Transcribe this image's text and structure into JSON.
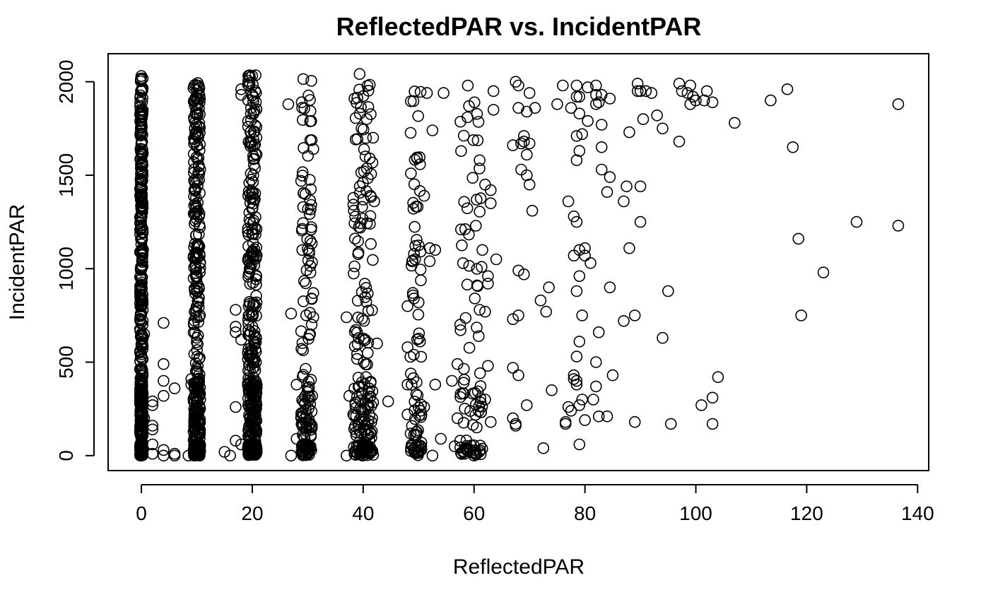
{
  "chart_data": {
    "type": "scatter",
    "title": "ReflectedPAR vs. IncidentPAR",
    "xlabel": "ReflectedPAR",
    "ylabel": "IncidentPAR",
    "xlim": [
      -6,
      142
    ],
    "ylim": [
      -80,
      2150
    ],
    "xticks": [
      0,
      20,
      40,
      60,
      80,
      100,
      120,
      140
    ],
    "yticks": [
      0,
      500,
      1000,
      1500,
      2000
    ],
    "grid": false,
    "legend": "none",
    "marker": "open-circle",
    "color": "#000000",
    "columns": [
      {
        "x": 0,
        "spread": 0.25,
        "ymin": 0,
        "ymax": 2040,
        "n": 520
      },
      {
        "x": 10,
        "spread": 0.6,
        "ymin": 0,
        "ymax": 2010,
        "n": 360
      },
      {
        "x": 20,
        "spread": 0.8,
        "ymin": 0,
        "ymax": 2040,
        "n": 380
      },
      {
        "x": 29.8,
        "spread": 1.0,
        "ymin": 0,
        "ymax": 2030,
        "n": 150
      },
      {
        "x": 40,
        "spread": 1.8,
        "ymin": 0,
        "ymax": 2070,
        "n": 200
      },
      {
        "x": 49.5,
        "spread": 1.0,
        "ymin": 0,
        "ymax": 2020,
        "n": 90
      },
      {
        "x": 59.5,
        "spread": 2.0,
        "ymin": 0,
        "ymax": 2010,
        "n": 90
      }
    ],
    "points": [
      [
        0.5,
        200
      ],
      [
        0.5,
        650
      ],
      [
        0.3,
        1100
      ],
      [
        2,
        270
      ],
      [
        2,
        290
      ],
      [
        2,
        140
      ],
      [
        2,
        160
      ],
      [
        2,
        60
      ],
      [
        2,
        10
      ],
      [
        4,
        710
      ],
      [
        4,
        490
      ],
      [
        4,
        400
      ],
      [
        4,
        320
      ],
      [
        4,
        30
      ],
      [
        4,
        0
      ],
      [
        6,
        360
      ],
      [
        6,
        10
      ],
      [
        6,
        0
      ],
      [
        8.5,
        0
      ],
      [
        9,
        380
      ],
      [
        9,
        410
      ],
      [
        15,
        20
      ],
      [
        16,
        0
      ],
      [
        17,
        780
      ],
      [
        17,
        660
      ],
      [
        17,
        690
      ],
      [
        17,
        260
      ],
      [
        17,
        80
      ],
      [
        18,
        620
      ],
      [
        18,
        60
      ],
      [
        18,
        1960
      ],
      [
        18,
        1930
      ],
      [
        26.5,
        1880
      ],
      [
        27,
        760
      ],
      [
        27,
        0
      ],
      [
        28,
        380
      ],
      [
        28,
        90
      ],
      [
        31,
        1640
      ],
      [
        31,
        870
      ],
      [
        31,
        740
      ],
      [
        37,
        740
      ],
      [
        37,
        0
      ],
      [
        37.5,
        320
      ],
      [
        42,
        1360
      ],
      [
        42.5,
        600
      ],
      [
        44.5,
        290
      ],
      [
        48,
        800
      ],
      [
        48,
        380
      ],
      [
        48,
        220
      ],
      [
        48,
        580
      ],
      [
        50,
        820
      ],
      [
        51,
        1390
      ],
      [
        51,
        260
      ],
      [
        51.5,
        1940
      ],
      [
        52,
        1110
      ],
      [
        52,
        1040
      ],
      [
        52.5,
        1740
      ],
      [
        52.5,
        0
      ],
      [
        53,
        1100
      ],
      [
        53,
        380
      ],
      [
        54,
        90
      ],
      [
        54.5,
        1940
      ],
      [
        56,
        400
      ],
      [
        56.5,
        50
      ],
      [
        57,
        200
      ],
      [
        57,
        490
      ],
      [
        57.5,
        700
      ],
      [
        57.5,
        80
      ],
      [
        61,
        1580
      ],
      [
        61,
        780
      ],
      [
        61.5,
        1100
      ],
      [
        62,
        770
      ],
      [
        62,
        1450
      ],
      [
        62,
        300
      ],
      [
        62.5,
        920
      ],
      [
        62.5,
        960
      ],
      [
        62.5,
        480
      ],
      [
        63,
        1420
      ],
      [
        63,
        1350
      ],
      [
        63,
        180
      ],
      [
        63.5,
        1850
      ],
      [
        63.5,
        1950
      ],
      [
        64,
        1050
      ],
      [
        67,
        1660
      ],
      [
        67,
        730
      ],
      [
        67,
        470
      ],
      [
        67,
        200
      ],
      [
        67.5,
        2000
      ],
      [
        67.5,
        160
      ],
      [
        67.5,
        170
      ],
      [
        68,
        1980
      ],
      [
        68,
        1860
      ],
      [
        68,
        990
      ],
      [
        68,
        750
      ],
      [
        68,
        430
      ],
      [
        68.5,
        1530
      ],
      [
        68.5,
        1670
      ],
      [
        69,
        1710
      ],
      [
        69,
        1680
      ],
      [
        69,
        970
      ],
      [
        69.5,
        1500
      ],
      [
        69.5,
        1610
      ],
      [
        69.5,
        1840
      ],
      [
        69.5,
        270
      ],
      [
        70,
        1450
      ],
      [
        70,
        1940
      ],
      [
        70,
        1670
      ],
      [
        70.5,
        1310
      ],
      [
        71,
        1860
      ],
      [
        72,
        830
      ],
      [
        72.5,
        40
      ],
      [
        73,
        770
      ],
      [
        73.5,
        900
      ],
      [
        74,
        350
      ],
      [
        75,
        1880
      ],
      [
        76,
        1980
      ],
      [
        76.5,
        180
      ],
      [
        76.5,
        170
      ],
      [
        77,
        1360
      ],
      [
        77,
        260
      ],
      [
        77.5,
        1860
      ],
      [
        77.5,
        240
      ],
      [
        78,
        1280
      ],
      [
        78,
        1070
      ],
      [
        78,
        430
      ],
      [
        78,
        410
      ],
      [
        78.5,
        1250
      ],
      [
        78.5,
        880
      ],
      [
        78.5,
        1580
      ],
      [
        78.5,
        1710
      ],
      [
        78.5,
        1980
      ],
      [
        78.5,
        1920
      ],
      [
        78.5,
        380
      ],
      [
        78.5,
        400
      ],
      [
        78.5,
        530
      ],
      [
        79,
        1920
      ],
      [
        79,
        1830
      ],
      [
        79,
        1630
      ],
      [
        79,
        1100
      ],
      [
        79,
        960
      ],
      [
        79,
        610
      ],
      [
        79,
        270
      ],
      [
        79,
        60
      ],
      [
        79.5,
        1720
      ],
      [
        79.5,
        750
      ],
      [
        79.5,
        300
      ],
      [
        80,
        1110
      ],
      [
        80,
        1070
      ],
      [
        80,
        190
      ],
      [
        80.5,
        1790
      ],
      [
        80.5,
        1970
      ],
      [
        81,
        1030
      ],
      [
        81.5,
        300
      ],
      [
        82,
        1980
      ],
      [
        82,
        1930
      ],
      [
        82,
        1880
      ],
      [
        82,
        500
      ],
      [
        82,
        370
      ],
      [
        82.5,
        1890
      ],
      [
        82.5,
        660
      ],
      [
        82.5,
        210
      ],
      [
        83,
        1770
      ],
      [
        83,
        1650
      ],
      [
        83,
        1530
      ],
      [
        83,
        1930
      ],
      [
        84,
        210
      ],
      [
        84,
        1410
      ],
      [
        84.5,
        1910
      ],
      [
        84.5,
        1490
      ],
      [
        84.5,
        900
      ],
      [
        85,
        430
      ],
      [
        87,
        1360
      ],
      [
        87,
        720
      ],
      [
        87.5,
        1440
      ],
      [
        88,
        1110
      ],
      [
        88,
        1730
      ],
      [
        89,
        750
      ],
      [
        89,
        180
      ],
      [
        89.5,
        1990
      ],
      [
        89.5,
        1950
      ],
      [
        90,
        1950
      ],
      [
        90,
        1440
      ],
      [
        90,
        1250
      ],
      [
        90.5,
        1800
      ],
      [
        91,
        1950
      ],
      [
        92,
        1940
      ],
      [
        93,
        1820
      ],
      [
        94,
        1750
      ],
      [
        94,
        630
      ],
      [
        95,
        880
      ],
      [
        95.5,
        170
      ],
      [
        97,
        1990
      ],
      [
        97,
        1680
      ],
      [
        97.5,
        1950
      ],
      [
        98.5,
        1940
      ],
      [
        99,
        1980
      ],
      [
        99,
        1880
      ],
      [
        99.5,
        1920
      ],
      [
        100,
        1900
      ],
      [
        101,
        270
      ],
      [
        101.5,
        1900
      ],
      [
        102,
        1950
      ],
      [
        103,
        1890
      ],
      [
        103,
        310
      ],
      [
        103,
        170
      ],
      [
        104,
        420
      ],
      [
        107,
        1780
      ],
      [
        113.5,
        1900
      ],
      [
        116.5,
        1960
      ],
      [
        117.5,
        1650
      ],
      [
        118.5,
        1160
      ],
      [
        119,
        750
      ],
      [
        123,
        980
      ],
      [
        129,
        1250
      ],
      [
        136.5,
        1230
      ],
      [
        136.5,
        1880
      ]
    ]
  }
}
